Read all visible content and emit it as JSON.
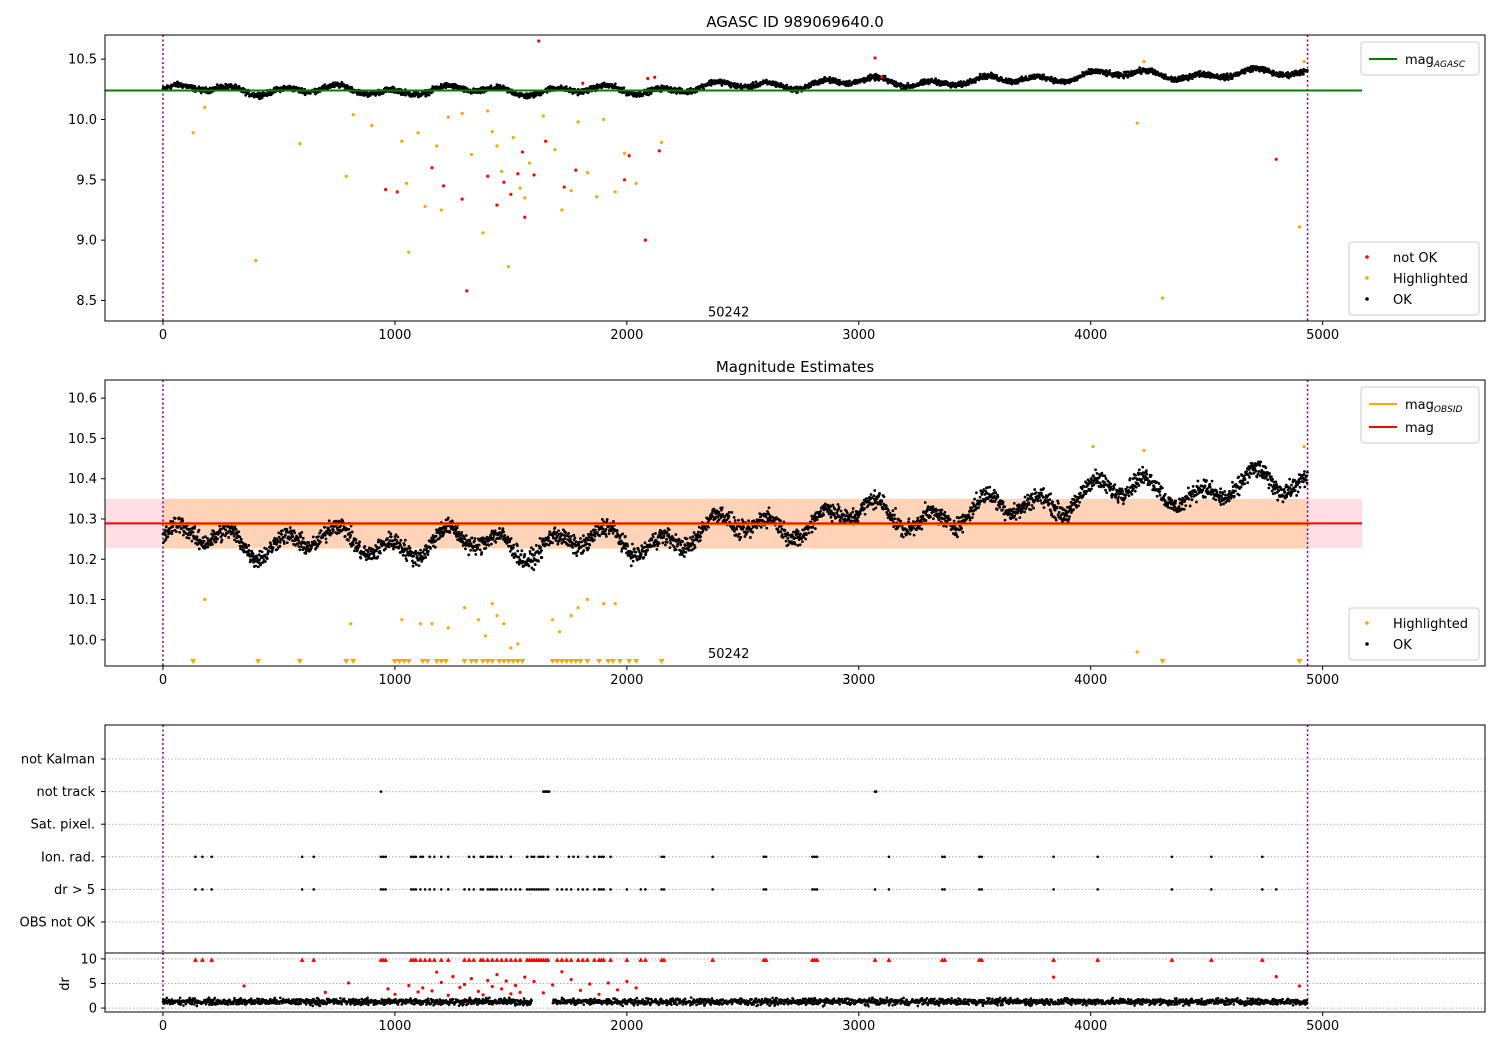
{
  "figure": {
    "title": "AGASC ID 989069640.0"
  },
  "chart_data": [
    {
      "type": "scatter",
      "title": "AGASC ID 989069640.0",
      "xlim": [
        -250,
        5700
      ],
      "ylim": [
        8.33,
        10.7
      ],
      "x_ticks": [
        0,
        1000,
        2000,
        3000,
        4000,
        5000
      ],
      "y_ticks": [
        8.5,
        9.0,
        9.5,
        10.0,
        10.5
      ],
      "y_tick_labels": [
        "8.5",
        "9.0",
        "9.5",
        "10.0",
        "10.5"
      ],
      "obsid_label": {
        "text": "50242",
        "x": 2350,
        "y": 8.4
      },
      "boundaries": [
        0,
        4935
      ],
      "reference_line": {
        "name": "mag_AGASC",
        "value": 10.24,
        "x_range": [
          -250,
          5170
        ],
        "color": "#008000"
      },
      "legend_lines": [
        {
          "label": "mag",
          "subscript": "AGASC",
          "color": "#008000"
        }
      ],
      "legend_points": [
        {
          "label": "not OK",
          "color": "#ff0000"
        },
        {
          "label": "Highlighted",
          "color": "#ffa500"
        },
        {
          "label": "OK",
          "color": "#000000"
        }
      ],
      "ok_series": {
        "x_range": [
          0,
          4935
        ],
        "trend": [
          [
            0,
            10.25
          ],
          [
            1000,
            10.24
          ],
          [
            2000,
            10.24
          ],
          [
            2500,
            10.28
          ],
          [
            3000,
            10.31
          ],
          [
            3500,
            10.31
          ],
          [
            4000,
            10.37
          ],
          [
            4500,
            10.37
          ],
          [
            4935,
            10.39
          ]
        ],
        "spread": 0.06
      },
      "highlighted_points": [
        [
          130,
          9.89
        ],
        [
          180,
          10.1
        ],
        [
          400,
          8.83
        ],
        [
          590,
          9.8
        ],
        [
          790,
          9.53
        ],
        [
          820,
          10.04
        ],
        [
          900,
          9.95
        ],
        [
          1030,
          9.82
        ],
        [
          1050,
          9.47
        ],
        [
          1060,
          8.9
        ],
        [
          1100,
          9.89
        ],
        [
          1130,
          9.28
        ],
        [
          1180,
          9.78
        ],
        [
          1200,
          9.25
        ],
        [
          1230,
          10.02
        ],
        [
          1290,
          10.05
        ],
        [
          1330,
          9.71
        ],
        [
          1380,
          9.06
        ],
        [
          1400,
          10.07
        ],
        [
          1420,
          9.9
        ],
        [
          1440,
          9.78
        ],
        [
          1460,
          9.57
        ],
        [
          1490,
          8.78
        ],
        [
          1510,
          9.85
        ],
        [
          1540,
          9.43
        ],
        [
          1560,
          9.35
        ],
        [
          1580,
          9.64
        ],
        [
          1640,
          10.03
        ],
        [
          1690,
          9.75
        ],
        [
          1720,
          9.25
        ],
        [
          1760,
          9.41
        ],
        [
          1790,
          9.98
        ],
        [
          1830,
          9.56
        ],
        [
          1870,
          9.36
        ],
        [
          1900,
          10.0
        ],
        [
          1950,
          9.4
        ],
        [
          1990,
          9.72
        ],
        [
          2040,
          9.47
        ],
        [
          2150,
          9.81
        ],
        [
          4200,
          9.97
        ],
        [
          4230,
          10.48
        ],
        [
          4310,
          8.52
        ],
        [
          4900,
          9.11
        ],
        [
          4920,
          10.48
        ]
      ],
      "not_ok_points": [
        [
          960,
          9.42
        ],
        [
          1010,
          9.4
        ],
        [
          1160,
          9.6
        ],
        [
          1210,
          9.45
        ],
        [
          1290,
          9.34
        ],
        [
          1310,
          8.58
        ],
        [
          1400,
          9.53
        ],
        [
          1440,
          9.29
        ],
        [
          1470,
          9.48
        ],
        [
          1500,
          9.38
        ],
        [
          1530,
          9.55
        ],
        [
          1550,
          9.73
        ],
        [
          1560,
          9.19
        ],
        [
          1600,
          9.54
        ],
        [
          1620,
          10.65
        ],
        [
          1650,
          9.82
        ],
        [
          1730,
          9.44
        ],
        [
          1780,
          9.58
        ],
        [
          1810,
          10.3
        ],
        [
          1990,
          9.5
        ],
        [
          2010,
          9.7
        ],
        [
          2080,
          9.0
        ],
        [
          2090,
          10.34
        ],
        [
          2120,
          10.35
        ],
        [
          2140,
          9.74
        ],
        [
          3070,
          10.51
        ],
        [
          3100,
          10.35
        ],
        [
          4800,
          9.67
        ]
      ]
    },
    {
      "type": "scatter",
      "title": "Magnitude Estimates",
      "xlim": [
        -250,
        5700
      ],
      "ylim": [
        9.935,
        10.645
      ],
      "x_ticks": [
        0,
        1000,
        2000,
        3000,
        4000,
        5000
      ],
      "y_ticks": [
        10.0,
        10.1,
        10.2,
        10.3,
        10.4,
        10.5,
        10.6
      ],
      "y_tick_labels": [
        "10.0",
        "10.1",
        "10.2",
        "10.3",
        "10.4",
        "10.5",
        "10.6"
      ],
      "obsid_label": {
        "text": "50242",
        "x": 2350,
        "y": 9.965
      },
      "boundaries": [
        0,
        4935
      ],
      "mag_line": {
        "name": "mag",
        "value": 10.289,
        "band": [
          10.228,
          10.35
        ],
        "x_range": [
          -250,
          5170
        ],
        "color": "#ff0000",
        "band_color": "#ffc0cb"
      },
      "mag_obsid": {
        "name": "mag_OBSID",
        "value": 10.287,
        "band": [
          10.225,
          10.35
        ],
        "x_range": [
          0,
          4935
        ],
        "color": "#ffa500"
      },
      "legend_lines": [
        {
          "label": "mag",
          "subscript": "OBSID",
          "color": "#ffa500"
        },
        {
          "label": "mag",
          "subscript": "",
          "color": "#ff0000"
        }
      ],
      "legend_points": [
        {
          "label": "Highlighted",
          "color": "#ffa500"
        },
        {
          "label": "OK",
          "color": "#000000"
        }
      ],
      "ok_series": {
        "x_range": [
          0,
          4935
        ],
        "trend": [
          [
            0,
            10.25
          ],
          [
            1000,
            10.24
          ],
          [
            2000,
            10.24
          ],
          [
            2500,
            10.28
          ],
          [
            3000,
            10.31
          ],
          [
            3500,
            10.31
          ],
          [
            4000,
            10.37
          ],
          [
            4500,
            10.37
          ],
          [
            4935,
            10.39
          ]
        ],
        "spread": 0.06
      },
      "highlighted_points": [
        [
          180,
          10.1
        ],
        [
          810,
          10.04
        ],
        [
          1030,
          10.05
        ],
        [
          1110,
          10.04
        ],
        [
          1160,
          10.04
        ],
        [
          1230,
          10.03
        ],
        [
          1300,
          10.08
        ],
        [
          1360,
          10.05
        ],
        [
          1390,
          10.01
        ],
        [
          1420,
          10.09
        ],
        [
          1440,
          10.06
        ],
        [
          1470,
          10.04
        ],
        [
          1500,
          9.98
        ],
        [
          1530,
          9.99
        ],
        [
          1680,
          10.05
        ],
        [
          1710,
          10.02
        ],
        [
          1760,
          10.06
        ],
        [
          1790,
          10.08
        ],
        [
          1830,
          10.1
        ],
        [
          1900,
          10.09
        ],
        [
          1950,
          10.09
        ],
        [
          4010,
          10.48
        ],
        [
          4200,
          9.97
        ],
        [
          4230,
          10.47
        ],
        [
          4920,
          10.48
        ]
      ],
      "clipped_markers": [
        130,
        410,
        590,
        790,
        820,
        1000,
        1020,
        1040,
        1060,
        1120,
        1140,
        1180,
        1200,
        1220,
        1300,
        1330,
        1350,
        1380,
        1400,
        1420,
        1450,
        1470,
        1490,
        1510,
        1530,
        1550,
        1680,
        1700,
        1720,
        1740,
        1760,
        1780,
        1800,
        1830,
        1880,
        1920,
        1940,
        1970,
        2010,
        2040,
        2150,
        4310,
        4900
      ]
    },
    {
      "type": "scatter",
      "title": "",
      "xlim": [
        -250,
        5700
      ],
      "categories": [
        "not Kalman",
        "not track",
        "Sat. pixel.",
        "Ion. rad.",
        "dr > 5",
        "OBS not OK"
      ],
      "boundaries": [
        0,
        4935
      ],
      "flag_points": {
        "not track": [
          940,
          1640,
          1645,
          1650,
          1655,
          1660,
          1665,
          3070,
          3075
        ],
        "Ion. rad.": [
          140,
          170,
          210,
          600,
          650,
          940,
          950,
          960,
          1070,
          1080,
          1090,
          1110,
          1120,
          1150,
          1170,
          1200,
          1230,
          1320,
          1340,
          1370,
          1380,
          1400,
          1410,
          1420,
          1440,
          1460,
          1500,
          1570,
          1590,
          1600,
          1620,
          1630,
          1640,
          1660,
          1700,
          1750,
          1770,
          1790,
          1830,
          1860,
          1880,
          1890,
          1900,
          1930,
          2150,
          2160,
          2370,
          2590,
          2600,
          2800,
          2810,
          2820,
          3130,
          3360,
          3370,
          3520,
          3530,
          3840,
          4030,
          4350,
          4520,
          4740
        ],
        "dr > 5": [
          140,
          170,
          210,
          600,
          650,
          940,
          950,
          960,
          1070,
          1080,
          1090,
          1110,
          1130,
          1150,
          1170,
          1200,
          1230,
          1300,
          1320,
          1340,
          1370,
          1380,
          1400,
          1410,
          1420,
          1430,
          1440,
          1460,
          1480,
          1500,
          1520,
          1540,
          1570,
          1580,
          1590,
          1600,
          1610,
          1620,
          1630,
          1640,
          1650,
          1660,
          1700,
          1720,
          1740,
          1760,
          1790,
          1810,
          1830,
          1860,
          1880,
          1890,
          1900,
          1930,
          2000,
          2060,
          2080,
          2150,
          2160,
          2370,
          2590,
          2600,
          2800,
          2810,
          2820,
          3070,
          3130,
          3360,
          3370,
          3520,
          3530,
          3840,
          4030,
          4350,
          4520,
          4740,
          4800
        ]
      }
    },
    {
      "type": "scatter",
      "title": "",
      "xlim": [
        -250,
        5700
      ],
      "ylim": [
        -0.8,
        11.2
      ],
      "ylabel": "dr",
      "x_ticks": [
        0,
        1000,
        2000,
        3000,
        4000,
        5000
      ],
      "y_ticks": [
        0,
        5,
        10
      ],
      "y_tick_labels": [
        "0",
        "5",
        "10"
      ],
      "boundaries": [
        0,
        4935
      ],
      "ok_series": {
        "x_range": [
          0,
          4935
        ],
        "mean": 1.3,
        "spread": 0.8
      },
      "clipped_markers": [
        140,
        170,
        210,
        600,
        650,
        940,
        950,
        960,
        1070,
        1080,
        1090,
        1110,
        1130,
        1150,
        1170,
        1200,
        1230,
        1300,
        1320,
        1340,
        1370,
        1380,
        1400,
        1420,
        1440,
        1460,
        1480,
        1500,
        1520,
        1540,
        1570,
        1580,
        1590,
        1600,
        1610,
        1620,
        1630,
        1640,
        1650,
        1660,
        1700,
        1720,
        1740,
        1760,
        1790,
        1810,
        1830,
        1860,
        1880,
        1890,
        1900,
        1930,
        2000,
        2060,
        2080,
        2150,
        2160,
        2370,
        2590,
        2600,
        2800,
        2810,
        2820,
        3070,
        3130,
        3360,
        3370,
        3520,
        3530,
        3840,
        4030,
        4350,
        4520,
        4740
      ],
      "not_ok_points": [
        [
          350,
          4.5
        ],
        [
          700,
          3.2
        ],
        [
          800,
          5.1
        ],
        [
          970,
          3.9
        ],
        [
          1000,
          2.8
        ],
        [
          1060,
          4.6
        ],
        [
          1100,
          3.3
        ],
        [
          1120,
          4.1
        ],
        [
          1160,
          3.5
        ],
        [
          1180,
          7.3
        ],
        [
          1200,
          5.2
        ],
        [
          1230,
          2.6
        ],
        [
          1250,
          6.4
        ],
        [
          1280,
          4.2
        ],
        [
          1300,
          4.8
        ],
        [
          1330,
          6.0
        ],
        [
          1360,
          3.4
        ],
        [
          1380,
          2.7
        ],
        [
          1400,
          5.6
        ],
        [
          1420,
          4.4
        ],
        [
          1440,
          6.8
        ],
        [
          1460,
          3.9
        ],
        [
          1480,
          5.5
        ],
        [
          1500,
          2.9
        ],
        [
          1520,
          4.6
        ],
        [
          1540,
          3.2
        ],
        [
          1560,
          6.3
        ],
        [
          1600,
          5.4
        ],
        [
          1640,
          3.1
        ],
        [
          1680,
          4.7
        ],
        [
          1720,
          7.4
        ],
        [
          1760,
          5.8
        ],
        [
          1800,
          3.6
        ],
        [
          1840,
          4.9
        ],
        [
          1880,
          2.8
        ],
        [
          1920,
          5.1
        ],
        [
          1960,
          3.7
        ],
        [
          2000,
          5.4
        ],
        [
          2040,
          4.1
        ],
        [
          3840,
          6.3
        ],
        [
          4800,
          6.4
        ],
        [
          4900,
          4.5
        ]
      ]
    }
  ]
}
